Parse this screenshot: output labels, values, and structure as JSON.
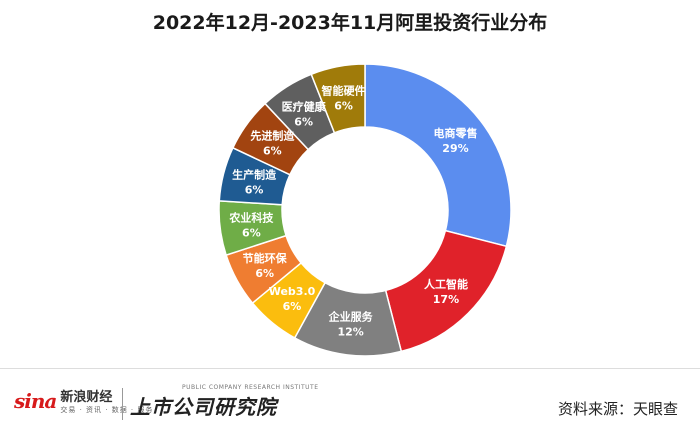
{
  "header": {
    "title": "2022年12月-2023年11月阿里投资行业分布"
  },
  "chart_data": {
    "type": "pie",
    "style": "donut",
    "title": "2022年12月-2023年11月阿里投资行业分布",
    "value_unit": "%",
    "slices": [
      {
        "label": "电商零售",
        "value": 29,
        "display": "29%",
        "color": "#5b8def"
      },
      {
        "label": "人工智能",
        "value": 17,
        "display": "17%",
        "color": "#e0222a"
      },
      {
        "label": "企业服务",
        "value": 12,
        "display": "12%",
        "color": "#808080"
      },
      {
        "label": "Web3.0",
        "value": 6,
        "display": "6%",
        "color": "#fbbd0e"
      },
      {
        "label": "节能环保",
        "value": 6,
        "display": "6%",
        "color": "#ef7d31"
      },
      {
        "label": "农业科技",
        "value": 6,
        "display": "6%",
        "color": "#6fad47"
      },
      {
        "label": "生产制造",
        "value": 6,
        "display": "6%",
        "color": "#1f5b92"
      },
      {
        "label": "先进制造",
        "value": 6,
        "display": "6%",
        "color": "#a24410"
      },
      {
        "label": "医疗健康",
        "value": 6,
        "display": "6%",
        "color": "#5f5f5f"
      },
      {
        "label": "智能硬件",
        "value": 6,
        "display": "6%",
        "color": "#a07b0a"
      }
    ]
  },
  "footer": {
    "sina_mark": "sina",
    "sina_name": "新浪财经",
    "sina_tags": "交易 · 资讯 · 数据 · 服务",
    "institute_en": "PUBLIC COMPANY RESEARCH INSTITUTE",
    "institute_cn": "上市公司研究院",
    "source": "资料来源：天眼查"
  }
}
